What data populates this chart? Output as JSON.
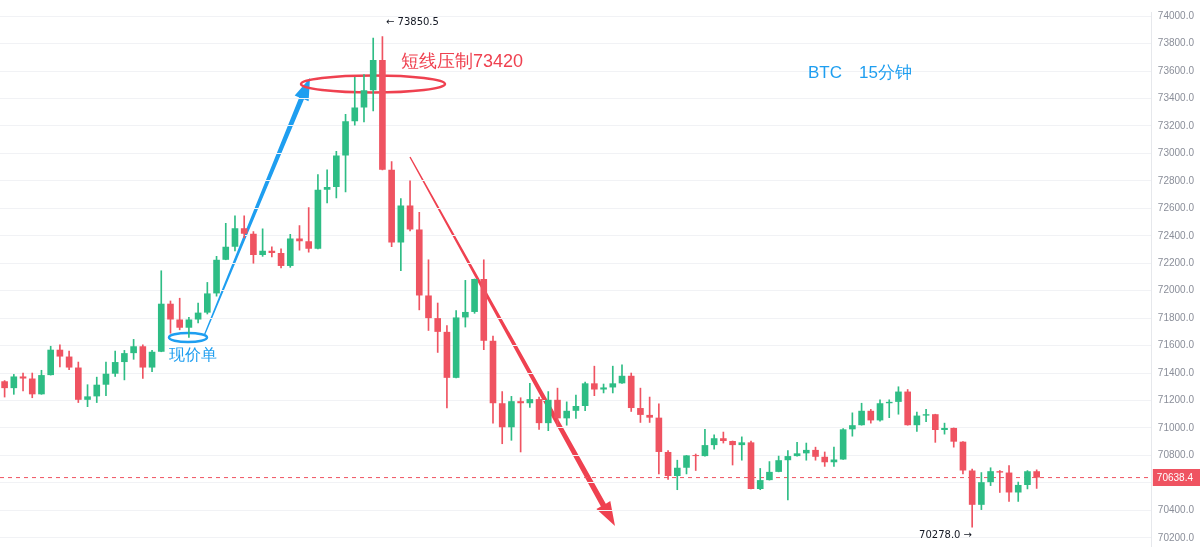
{
  "chart_data": {
    "type": "candlestick",
    "title": "BTC　15分钟",
    "categories": [
      null,
      null,
      null,
      null,
      null,
      null,
      null,
      null,
      null,
      null,
      null,
      null,
      null,
      null,
      null,
      null,
      null,
      null,
      null,
      null,
      null,
      null,
      null,
      null,
      null,
      null,
      null,
      null,
      null,
      null,
      null,
      null,
      null,
      null,
      null,
      null,
      null,
      null,
      null,
      null,
      null,
      null,
      null,
      null,
      null,
      null,
      null,
      null,
      null,
      null,
      null,
      null,
      null,
      null,
      null,
      null,
      null,
      null,
      null,
      null,
      null,
      null,
      null,
      null,
      null,
      null,
      null,
      null,
      null,
      null,
      null,
      null,
      null,
      null,
      null,
      null,
      null,
      null,
      null,
      null,
      null,
      null,
      null,
      null,
      null,
      null,
      null,
      null,
      null,
      null,
      null,
      null,
      null,
      null,
      null,
      null,
      null,
      null,
      null,
      null,
      null,
      null,
      null,
      null,
      null,
      null,
      null,
      null,
      null,
      null,
      null,
      null,
      null,
      null,
      null,
      null,
      null,
      null,
      null,
      null,
      null,
      null,
      null,
      null,
      null
    ],
    "ohlc": [
      [
        71340,
        71345,
        71225,
        71290
      ],
      [
        71290,
        71390,
        71245,
        71375
      ],
      [
        71375,
        71400,
        71270,
        71360
      ],
      [
        71360,
        71400,
        71220,
        71245
      ],
      [
        71245,
        71420,
        71245,
        71385
      ],
      [
        71385,
        71595,
        71385,
        71570
      ],
      [
        71570,
        71605,
        71445,
        71520
      ],
      [
        71520,
        71560,
        71425,
        71440
      ],
      [
        71440,
        71480,
        71185,
        71205
      ],
      [
        71205,
        71315,
        71155,
        71230
      ],
      [
        71230,
        71370,
        71185,
        71315
      ],
      [
        71315,
        71480,
        71235,
        71395
      ],
      [
        71395,
        71560,
        71375,
        71480
      ],
      [
        71480,
        71565,
        71350,
        71545
      ],
      [
        71545,
        71645,
        71500,
        71595
      ],
      [
        71595,
        71605,
        71360,
        71440
      ],
      [
        71440,
        71565,
        71410,
        71555
      ],
      [
        71555,
        72145,
        71555,
        71905
      ],
      [
        71905,
        71925,
        71690,
        71790
      ],
      [
        71790,
        71945,
        71715,
        71730
      ],
      [
        71730,
        71805,
        71660,
        71790
      ],
      [
        71790,
        71910,
        71765,
        71840
      ],
      [
        71840,
        72060,
        71830,
        71980
      ],
      [
        71980,
        72250,
        71960,
        72225
      ],
      [
        72225,
        72490,
        72225,
        72320
      ],
      [
        72320,
        72545,
        72290,
        72455
      ],
      [
        72455,
        72545,
        72385,
        72415
      ],
      [
        72415,
        72430,
        72200,
        72260
      ],
      [
        72260,
        72450,
        72250,
        72290
      ],
      [
        72290,
        72320,
        72245,
        72275
      ],
      [
        72275,
        72305,
        72165,
        72180
      ],
      [
        72180,
        72410,
        72170,
        72380
      ],
      [
        72380,
        72475,
        72295,
        72360
      ],
      [
        72360,
        72605,
        72280,
        72305
      ],
      [
        72305,
        72845,
        72305,
        72735
      ],
      [
        72735,
        72880,
        72640,
        72755
      ],
      [
        72755,
        73015,
        72675,
        72985
      ],
      [
        72985,
        73285,
        72720,
        73235
      ],
      [
        73235,
        73555,
        73205,
        73335
      ],
      [
        73335,
        73575,
        73230,
        73460
      ],
      [
        73460,
        73840,
        73310,
        73680
      ],
      [
        73680,
        73850.5,
        72880,
        72880
      ],
      [
        72880,
        72940,
        72320,
        72350
      ],
      [
        72350,
        72670,
        72145,
        72620
      ],
      [
        72620,
        72800,
        72435,
        72445
      ],
      [
        72445,
        72570,
        71860,
        71965
      ],
      [
        71965,
        72225,
        71710,
        71800
      ],
      [
        71800,
        71910,
        71550,
        71700
      ],
      [
        71700,
        71745,
        71145,
        71365
      ],
      [
        71365,
        71855,
        71365,
        71805
      ],
      [
        71805,
        72075,
        71735,
        71845
      ],
      [
        71845,
        72085,
        71835,
        72085
      ],
      [
        72085,
        72225,
        71570,
        71635
      ],
      [
        71635,
        71670,
        71035,
        71180
      ],
      [
        71180,
        71265,
        70885,
        71005
      ],
      [
        71005,
        71230,
        70910,
        71195
      ],
      [
        71195,
        71220,
        70825,
        71180
      ],
      [
        71180,
        71325,
        71150,
        71210
      ],
      [
        71210,
        71225,
        70990,
        71035
      ],
      [
        71035,
        71265,
        70980,
        71205
      ],
      [
        71205,
        71290,
        71010,
        71070
      ],
      [
        71070,
        71190,
        71020,
        71125
      ],
      [
        71125,
        71240,
        71070,
        71160
      ],
      [
        71160,
        71335,
        71125,
        71325
      ],
      [
        71325,
        71450,
        71235,
        71280
      ],
      [
        71280,
        71320,
        71255,
        71295
      ],
      [
        71295,
        71450,
        71255,
        71325
      ],
      [
        71325,
        71460,
        71325,
        71380
      ],
      [
        71380,
        71400,
        71120,
        71145
      ],
      [
        71145,
        71290,
        71040,
        71095
      ],
      [
        71095,
        71225,
        71040,
        71075
      ],
      [
        71075,
        71175,
        70665,
        70825
      ],
      [
        70825,
        70835,
        70625,
        70650
      ],
      [
        70650,
        70765,
        70550,
        70710
      ],
      [
        70710,
        70800,
        70665,
        70800
      ],
      [
        70800,
        70810,
        70690,
        70795
      ],
      [
        70795,
        70990,
        70795,
        70875
      ],
      [
        70875,
        70950,
        70845,
        70925
      ],
      [
        70925,
        70970,
        70890,
        70905
      ],
      [
        70905,
        70905,
        70730,
        70875
      ],
      [
        70875,
        70935,
        70765,
        70895
      ],
      [
        70895,
        70905,
        70555,
        70555
      ],
      [
        70555,
        70705,
        70550,
        70620
      ],
      [
        70620,
        70755,
        70620,
        70680
      ],
      [
        70680,
        70795,
        70680,
        70765
      ],
      [
        70765,
        70835,
        70475,
        70795
      ],
      [
        70795,
        70895,
        70795,
        70815
      ],
      [
        70815,
        70890,
        70765,
        70840
      ],
      [
        70840,
        70860,
        70765,
        70790
      ],
      [
        70790,
        70825,
        70720,
        70750
      ],
      [
        70750,
        70860,
        70720,
        70770
      ],
      [
        70770,
        70995,
        70770,
        70990
      ],
      [
        70990,
        71110,
        70940,
        71020
      ],
      [
        71020,
        71180,
        71020,
        71125
      ],
      [
        71125,
        71135,
        71035,
        71055
      ],
      [
        71055,
        71205,
        71050,
        71180
      ],
      [
        71180,
        71205,
        71075,
        71190
      ],
      [
        71190,
        71300,
        71100,
        71265
      ],
      [
        71265,
        71280,
        71020,
        71020
      ],
      [
        71020,
        71115,
        70975,
        71090
      ],
      [
        71090,
        71135,
        71045,
        71100
      ],
      [
        71100,
        71100,
        70895,
        70985
      ],
      [
        70985,
        71035,
        70955,
        71000
      ],
      [
        71000,
        71000,
        70860,
        70900
      ],
      [
        70900,
        70900,
        70665,
        70690
      ],
      [
        70690,
        70700,
        70278.0,
        70440
      ],
      [
        70440,
        70675,
        70405,
        70605
      ],
      [
        70605,
        70710,
        70580,
        70685
      ],
      [
        70685,
        70690,
        70530,
        70675
      ],
      [
        70675,
        70725,
        70465,
        70530
      ],
      [
        70530,
        70605,
        70465,
        70585
      ],
      [
        70585,
        70690,
        70555,
        70685
      ],
      [
        70685,
        70695,
        70560,
        70638.4
      ],
      null,
      null,
      null,
      null,
      null,
      null,
      null,
      null,
      null,
      null,
      null,
      null
    ],
    "colors": [
      "#ef5361",
      "#2ebd85",
      "#ef5361",
      "#ef5361",
      "#2ebd85",
      "#2ebd85",
      "#ef5361",
      "#ef5361",
      "#ef5361",
      "#2ebd85",
      "#2ebd85",
      "#2ebd85",
      "#2ebd85",
      "#2ebd85",
      "#2ebd85",
      "#ef5361",
      "#2ebd85",
      "#2ebd85",
      "#ef5361",
      "#ef5361",
      "#2ebd85",
      "#2ebd85",
      "#2ebd85",
      "#2ebd85",
      "#2ebd85",
      "#2ebd85",
      "#ef5361",
      "#ef5361",
      "#2ebd85",
      "#ef5361",
      "#ef5361",
      "#2ebd85",
      "#ef5361",
      "#ef5361",
      "#2ebd85",
      "#2ebd85",
      "#2ebd85",
      "#2ebd85",
      "#2ebd85",
      "#2ebd85",
      "#2ebd85",
      "#ef5361",
      "#ef5361",
      "#2ebd85",
      "#ef5361",
      "#ef5361",
      "#ef5361",
      "#ef5361",
      "#ef5361",
      "#2ebd85",
      "#2ebd85",
      "#2ebd85",
      "#ef5361",
      "#ef5361",
      "#ef5361",
      "#2ebd85",
      "#ef5361",
      "#2ebd85",
      "#ef5361",
      "#2ebd85",
      "#ef5361",
      "#2ebd85",
      "#2ebd85",
      "#2ebd85",
      "#ef5361",
      "#2ebd85",
      "#2ebd85",
      "#2ebd85",
      "#ef5361",
      "#ef5361",
      "#ef5361",
      "#ef5361",
      "#ef5361",
      "#2ebd85",
      "#2ebd85",
      "#ef5361",
      "#2ebd85",
      "#2ebd85",
      "#ef5361",
      "#ef5361",
      "#2ebd85",
      "#ef5361",
      "#2ebd85",
      "#2ebd85",
      "#2ebd85",
      "#2ebd85",
      "#2ebd85",
      "#2ebd85",
      "#ef5361",
      "#ef5361",
      "#2ebd85",
      "#2ebd85",
      "#2ebd85",
      "#2ebd85",
      "#ef5361",
      "#2ebd85",
      "#2ebd85",
      "#2ebd85",
      "#ef5361",
      "#2ebd85",
      "#2ebd85",
      "#ef5361",
      "#2ebd85",
      "#ef5361",
      "#ef5361",
      "#ef5361",
      "#2ebd85",
      "#2ebd85",
      "#ef5361",
      "#ef5361",
      "#2ebd85",
      "#2ebd85",
      "#ef5361",
      null,
      null,
      null,
      null,
      null,
      null,
      null,
      null,
      null,
      null,
      null,
      null
    ],
    "ylim": [
      70140,
      74030
    ],
    "yticks": [
      {
        "value": 70200,
        "label": "70200.0"
      },
      {
        "value": 70400,
        "label": "70400.0"
      },
      {
        "value": 70600,
        "label": null
      },
      {
        "value": 70800,
        "label": "70800.0"
      },
      {
        "value": 71000,
        "label": "71000.0"
      },
      {
        "value": 71200,
        "label": "71200.0"
      },
      {
        "value": 71400,
        "label": "71400.0"
      },
      {
        "value": 71600,
        "label": "71600.0"
      },
      {
        "value": 71800,
        "label": "71800.0"
      },
      {
        "value": 72000,
        "label": "72000.0"
      },
      {
        "value": 72200,
        "label": "72200.0"
      },
      {
        "value": 72400,
        "label": "72400.0"
      },
      {
        "value": 72600,
        "label": "72600.0"
      },
      {
        "value": 72800,
        "label": "72800.0"
      },
      {
        "value": 73000,
        "label": "73000.0"
      },
      {
        "value": 73200,
        "label": "73200.0"
      },
      {
        "value": 73400,
        "label": "73400.0"
      },
      {
        "value": 73600,
        "label": "73600.0"
      },
      {
        "value": 73800,
        "label": "73800.0"
      },
      {
        "value": 74000,
        "label": "74000.0"
      }
    ],
    "ref_lines": [
      {
        "axis": "y",
        "value": 70638.4,
        "label": "70638.4",
        "color": "#ef5361",
        "line_style": "dashed"
      }
    ],
    "annotations": [
      "短线压制73420",
      "现价单",
      "← 73850.5",
      "70278.0 →"
    ],
    "grid": "y",
    "tick_labels": "y"
  }
}
